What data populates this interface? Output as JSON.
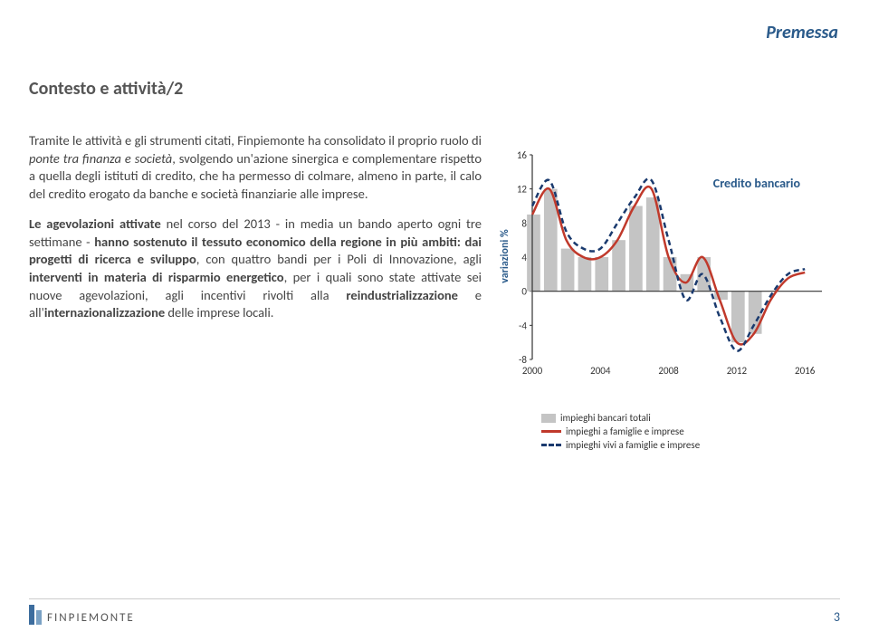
{
  "header": {
    "label": "Premessa"
  },
  "title": "Contesto e attività/2",
  "paragraphs": {
    "p1a": "Tramite le attività e gli strumenti citati, Finpiemonte ha consolidato il proprio ruolo di ",
    "p1_italic": "ponte tra finanza e società",
    "p1b": ", svolgendo un'azione sinergica e complementare rispetto a quella degli istituti di credito, che ha permesso di colmare, almeno in parte, il calo del credito erogato da banche e società finanziarie alle imprese.",
    "p2a_bold": "Le agevolazioni attivate",
    "p2a": " nel corso del 2013 - in media un bando aperto ogni tre settimane - ",
    "p2b_bold": "hanno sostenuto il tessuto economico della regione in più ambiti: dai progetti di ricerca e sviluppo",
    "p2b": ", con quattro bandi per i Poli di Innovazione, agli ",
    "p2c_bold": "interventi in materia di risparmio energetico",
    "p2c": ", per i quali sono state attivate sei nuove agevolazioni, agli incentivi rivolti alla ",
    "p2d_bold": "reindustrializzazione",
    "p2d": " e all'",
    "p2e_bold": "internazionalizzazione",
    "p2e": " delle imprese locali."
  },
  "chart": {
    "type": "combo-bar-line",
    "title": "Credito bancario",
    "y_axis_label": "variazioni %",
    "x_ticks": [
      "2000",
      "2004",
      "2008",
      "2012",
      "2016"
    ],
    "x_tick_positions": [
      0,
      4,
      8,
      12,
      16
    ],
    "y_ticks": [
      -8,
      -4,
      0,
      4,
      8,
      12,
      16
    ],
    "ylim": [
      -8,
      16
    ],
    "xlim": [
      0,
      17
    ],
    "bars": {
      "x": [
        0,
        1,
        2,
        3,
        4,
        5,
        6,
        7,
        8,
        9,
        10,
        11,
        12,
        13
      ],
      "y": [
        9,
        12,
        5,
        4,
        4,
        6,
        10,
        11,
        4,
        2,
        4,
        -1,
        -6,
        -5
      ],
      "color": "#c4c4c4",
      "width": 0.78
    },
    "line_red": {
      "x": [
        0,
        1,
        2,
        3,
        4,
        5,
        6,
        7,
        8,
        9,
        10,
        11,
        12,
        13,
        14,
        15,
        16
      ],
      "y": [
        9,
        12,
        6,
        4,
        4,
        6,
        10,
        12,
        4,
        1,
        4,
        -1,
        -6,
        -5,
        -1,
        1.5,
        2.2
      ],
      "color": "#c0392b",
      "width": 2.5
    },
    "line_blue": {
      "x": [
        0,
        1,
        2,
        3,
        4,
        5,
        6,
        7,
        8,
        9,
        10,
        11,
        12,
        13,
        14,
        15,
        16
      ],
      "y": [
        10,
        13,
        7,
        5,
        5,
        8,
        11,
        13,
        6,
        -1,
        2,
        -3,
        -7,
        -4,
        -0.5,
        2,
        2.6
      ],
      "color": "#1a3a6e",
      "width": 2.5,
      "dash": "6,4"
    },
    "legend": [
      {
        "kind": "box",
        "color": "#c4c4c4",
        "label": "impieghi bancari totali"
      },
      {
        "kind": "line",
        "color": "#c0392b",
        "label": "impieghi a famiglie e imprese"
      },
      {
        "kind": "dash",
        "color": "#1a3a6e",
        "label": "impieghi vivi a famiglie e imprese"
      }
    ],
    "background_color": "#ffffff",
    "axis_color": "#333333",
    "tick_font_size": 11
  },
  "footer": {
    "logo_text": "FINPIEMONTE",
    "page": "3"
  }
}
